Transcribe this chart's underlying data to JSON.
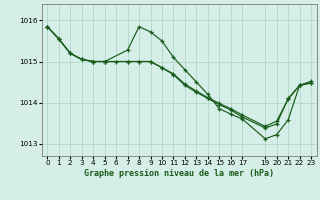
{
  "title": "Graphe pression niveau de la mer (hPa)",
  "background_color": "#d5eee8",
  "plot_bg_color": "#d5eee8",
  "grid_color": "#b0d8c8",
  "line_color": "#1a5c1a",
  "xlim": [
    -0.5,
    23.5
  ],
  "ylim": [
    1012.7,
    1016.4
  ],
  "xticks": [
    0,
    1,
    2,
    3,
    4,
    5,
    6,
    7,
    8,
    9,
    10,
    11,
    12,
    13,
    14,
    15,
    16,
    17,
    19,
    20,
    21,
    22,
    23
  ],
  "yticks": [
    1013,
    1014,
    1015,
    1016
  ],
  "line1_x": [
    0,
    1,
    2,
    3,
    4,
    5,
    7,
    8,
    9,
    10,
    11,
    12,
    13,
    14,
    15,
    16,
    17,
    19,
    20,
    21,
    22,
    23
  ],
  "line1_y": [
    1015.85,
    1015.55,
    1015.2,
    1015.05,
    1015.0,
    1015.0,
    1015.28,
    1015.85,
    1015.72,
    1015.5,
    1015.1,
    1014.8,
    1014.5,
    1014.2,
    1013.85,
    1013.72,
    1013.6,
    1013.12,
    1013.22,
    1013.58,
    1014.42,
    1014.52
  ],
  "line2_x": [
    0,
    1,
    2,
    3,
    4,
    5,
    7,
    8,
    9,
    10,
    11,
    12,
    13,
    14,
    15,
    16,
    17,
    19,
    20,
    21,
    22,
    23
  ],
  "line2_y": [
    1015.85,
    1015.55,
    1015.2,
    1015.05,
    1015.0,
    1015.0,
    1015.0,
    1015.0,
    1015.0,
    1014.85,
    1014.7,
    1014.45,
    1014.28,
    1014.12,
    1013.98,
    1013.85,
    1013.7,
    1013.42,
    1013.55,
    1014.08,
    1014.42,
    1014.48
  ],
  "line3_x": [
    0,
    1,
    2,
    3,
    4,
    5,
    6,
    7,
    8,
    9,
    10,
    11,
    12,
    13,
    14,
    15,
    16,
    17,
    19,
    20,
    21,
    22,
    23
  ],
  "line3_y": [
    1015.85,
    1015.55,
    1015.2,
    1015.05,
    1015.0,
    1015.0,
    1015.0,
    1015.0,
    1015.0,
    1015.0,
    1014.85,
    1014.68,
    1014.42,
    1014.25,
    1014.1,
    1013.95,
    1013.82,
    1013.65,
    1013.38,
    1013.48,
    1014.1,
    1014.42,
    1014.48
  ]
}
